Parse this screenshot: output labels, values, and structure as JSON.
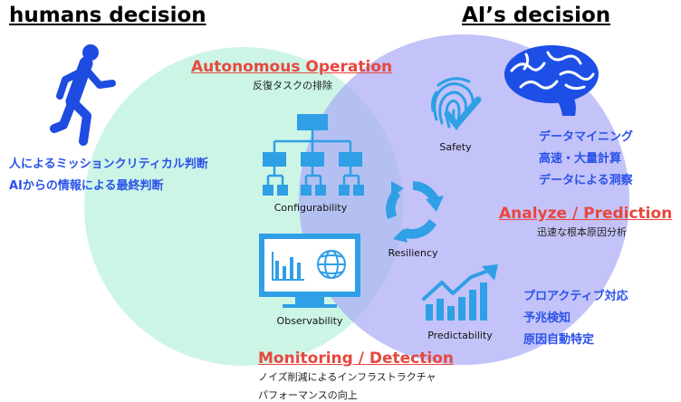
{
  "titles": {
    "humans": "humans decision",
    "ai": "AI’s decision"
  },
  "sections": {
    "autonomous": {
      "heading": "Autonomous Operation",
      "sub": "反復タスクの排除"
    },
    "analyze": {
      "heading": "Analyze / Prediction",
      "sub": "迅速な根本原因分析"
    },
    "monitoring": {
      "heading": "Monitoring / Detection",
      "sub1": "ノイズ削減によるインフラストラクチャ",
      "sub2": "パフォーマンスの向上"
    }
  },
  "human_items": [
    "人によるミッションクリティカル判断",
    "AIからの情報による最終判断"
  ],
  "ai_items_top": [
    "データマイニング",
    "高速・大量計算",
    "データによる洞察"
  ],
  "ai_items_bottom": [
    "プロアクティブ対応",
    "予兆検知",
    "原因自動特定"
  ],
  "capabilities": {
    "safety": "Safety",
    "configurability": "Configurability",
    "resiliency": "Resiliency",
    "observability": "Observability",
    "predictability": "Predictability"
  },
  "icons": {
    "person": "running-person-icon",
    "brain": "brain-icon",
    "safety": "fingerprint-check-icon",
    "config": "hierarchy-icon",
    "resiliency": "cycle-arrows-icon",
    "observability": "monitor-globe-icon",
    "predictability": "growth-chart-icon"
  },
  "colors": {
    "accent_blue": "#2a52ea",
    "icon_blue": "#2f9fe6",
    "heading_red": "#e8473d",
    "human_circle": "#ccf5e6",
    "ai_circle": "#aaaaf6"
  }
}
